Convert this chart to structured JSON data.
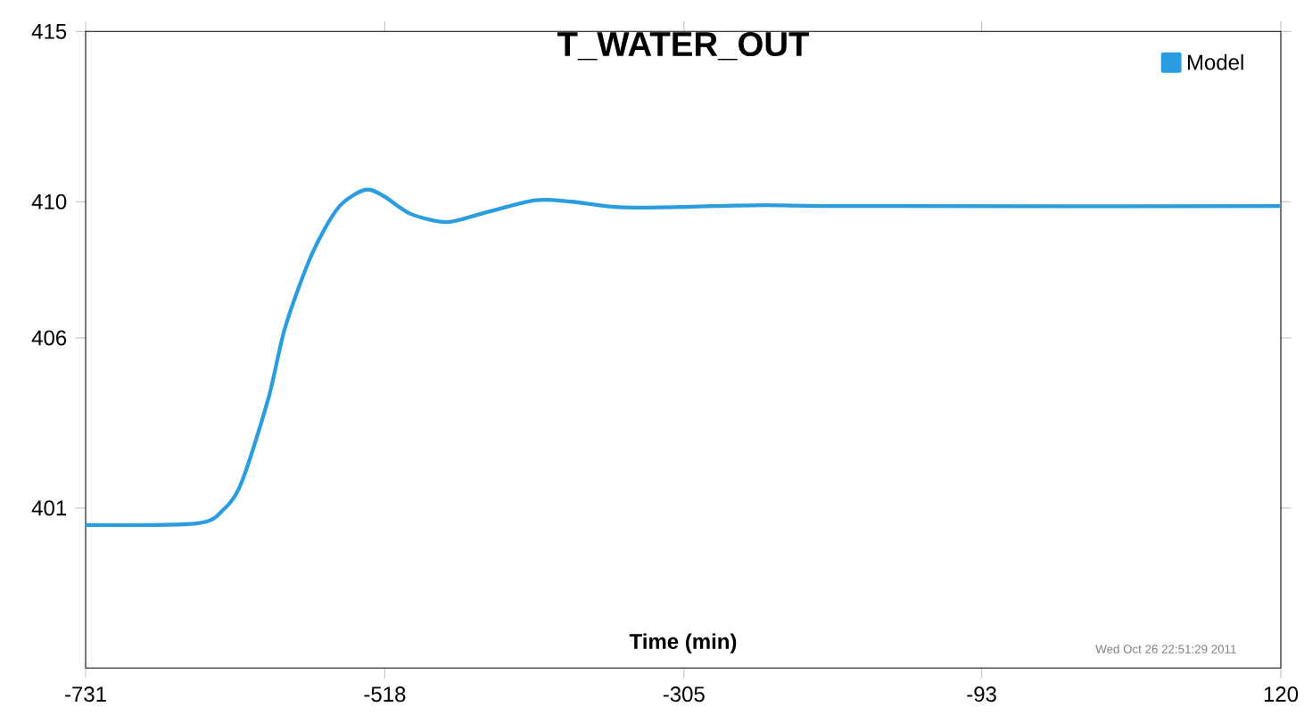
{
  "chart_data": {
    "type": "line",
    "title": "T_WATER_OUT",
    "xlabel": "Time (min)",
    "annotations": [
      "Wed Oct 26 22:51:29 2011"
    ],
    "x": [
      -731,
      -652,
      -633,
      -620,
      -601,
      -589,
      -570,
      -551,
      -532,
      -519,
      -500,
      -474,
      -449,
      -411,
      -385,
      -347,
      -284,
      -246,
      -182,
      120
    ],
    "series": [
      {
        "name": "Model",
        "color": "#2a9de0",
        "values": [
          400.5,
          400.55,
          400.95,
          401.75,
          404.2,
          406.3,
          408.45,
          409.83,
          410.35,
          410.17,
          409.65,
          409.4,
          409.65,
          410.04,
          410.0,
          409.83,
          409.87,
          409.9,
          409.87,
          409.87
        ]
      }
    ],
    "xlim": [
      -731,
      120
    ],
    "ylim": [
      396.3,
      415
    ],
    "xticks": [
      -731,
      -518,
      -305,
      -93,
      120
    ],
    "yticks": [
      401,
      406,
      410,
      415
    ],
    "legend": "top right",
    "grid": false,
    "marker": "none",
    "line_style": "solid"
  }
}
